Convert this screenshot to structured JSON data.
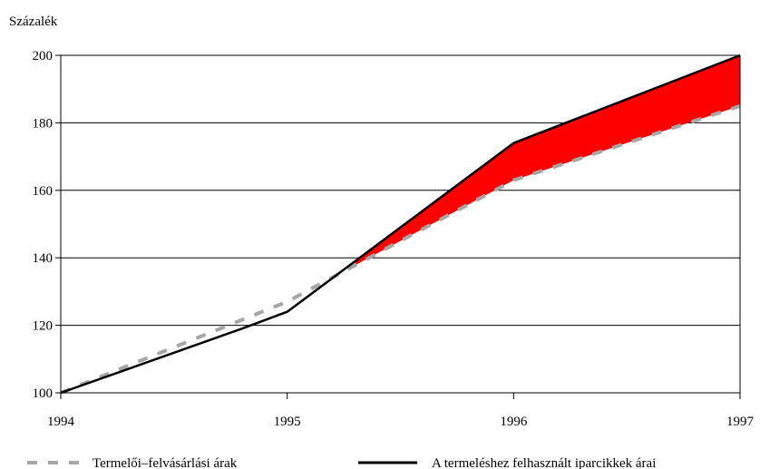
{
  "chart_data": {
    "type": "line",
    "ylabel": "Százalék",
    "xlabel": "",
    "x_ticks": [
      "1994",
      "1995",
      "1996",
      "1997"
    ],
    "y_ticks": [
      100,
      120,
      140,
      160,
      180,
      200
    ],
    "xlim": [
      1994,
      1997
    ],
    "ylim": [
      100,
      200
    ],
    "grid": "horizontal",
    "legend_position": "bottom",
    "series": [
      {
        "name": "Termelői–felvásárlási árak",
        "style": "dashed",
        "color": "#a6a6a6",
        "points": [
          [
            1994,
            100
          ],
          [
            1995,
            127
          ],
          [
            1996,
            163
          ],
          [
            1997,
            185
          ]
        ]
      },
      {
        "name": "A termeléshez felhasznált iparcikkek árai",
        "style": "solid",
        "color": "#000000",
        "points": [
          [
            1994,
            100
          ],
          [
            1994.8,
            119
          ],
          [
            1995,
            124
          ],
          [
            1996,
            174
          ],
          [
            1997,
            200
          ]
        ]
      }
    ],
    "gap_fill_color": "#ff0000",
    "gap_fill_from_x": 1995.3
  }
}
